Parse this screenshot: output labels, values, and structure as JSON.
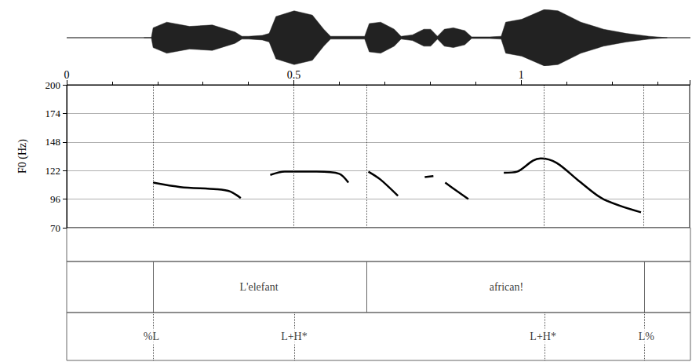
{
  "chart_data": {
    "type": "line",
    "y_label": "F0 (Hz)",
    "x": [
      0.19,
      0.25,
      0.33,
      0.36,
      0.383,
      null,
      0.448,
      0.48,
      0.55,
      0.6,
      0.62,
      null,
      0.664,
      0.69,
      0.729,
      null,
      0.788,
      0.807,
      null,
      0.833,
      0.86,
      0.884,
      null,
      0.962,
      0.991,
      1.026,
      1.043,
      1.078,
      1.129,
      1.181,
      1.264
    ],
    "values": [
      111,
      107,
      105,
      103,
      97,
      null,
      118,
      121,
      121,
      119,
      111,
      null,
      121,
      114,
      99,
      null,
      116,
      117,
      null,
      111,
      103,
      96,
      null,
      120,
      121,
      131,
      133,
      129,
      112,
      96,
      84
    ],
    "color": "#000000",
    "xlim": [
      0,
      1.371
    ],
    "xticks": [
      0,
      0.5,
      1
    ],
    "ylim": [
      70,
      200
    ],
    "yticks": [
      70,
      96,
      122,
      148,
      174,
      200
    ],
    "grid": true,
    "waveform": {
      "x": [
        0.17,
        0.186,
        0.19,
        0.22,
        0.27,
        0.32,
        0.37,
        0.385,
        0.4,
        0.43,
        0.445,
        0.46,
        0.5,
        0.54,
        0.565,
        0.58,
        0.63,
        0.655,
        0.665,
        0.69,
        0.72,
        0.735,
        0.76,
        0.785,
        0.8,
        0.815,
        0.83,
        0.85,
        0.875,
        0.89,
        0.93,
        0.955,
        0.965,
        1.0,
        1.05,
        1.08,
        1.13,
        1.18,
        1.23,
        1.28,
        1.32
      ],
      "amplitude": [
        0,
        0,
        0.35,
        0.55,
        0.4,
        0.45,
        0.2,
        0.05,
        0.05,
        0.08,
        0.15,
        0.75,
        0.95,
        0.8,
        0.3,
        0.05,
        0.05,
        0.05,
        0.5,
        0.55,
        0.3,
        0.05,
        0.1,
        0.3,
        0.3,
        0.05,
        0.3,
        0.35,
        0.25,
        0.03,
        0.03,
        0.05,
        0.55,
        0.65,
        1.0,
        0.95,
        0.55,
        0.3,
        0.15,
        0.05,
        0
      ],
      "ylim": [
        -1,
        1
      ]
    },
    "words": [
      {
        "label": "L'elefant",
        "start": 0.186,
        "end": 0.659
      },
      {
        "label": "african!",
        "start": 0.659,
        "end": 1.274
      }
    ],
    "tones": [
      {
        "label": "%L",
        "time": 0.186
      },
      {
        "label": "L+H*",
        "time": 0.5
      },
      {
        "label": "L+H*",
        "time": 1.047
      },
      {
        "label": "L%",
        "time": 1.274
      }
    ]
  }
}
